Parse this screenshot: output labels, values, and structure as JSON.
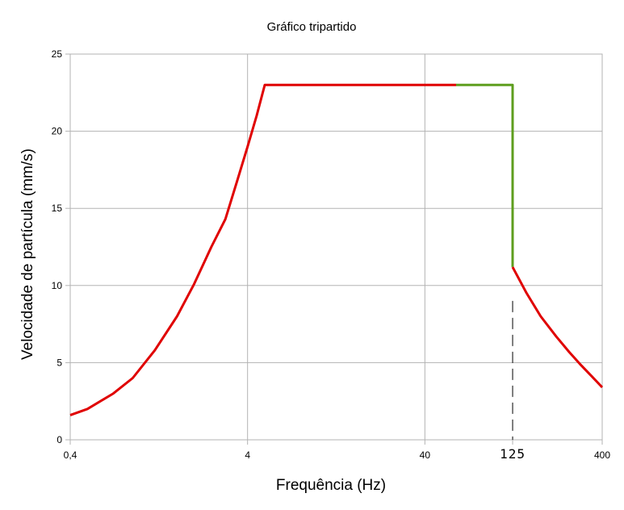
{
  "chart_data": {
    "type": "line",
    "title": "Gráfico tripartido",
    "xlabel": "Frequência (Hz)",
    "ylabel": "Velocidade de partícula (mm/s)",
    "xscale": "log",
    "xlim": [
      0.4,
      400
    ],
    "ylim": [
      0,
      25
    ],
    "grid": true,
    "legend": "none",
    "y_ticks": [
      "0",
      "5",
      "10",
      "15",
      "20",
      "25"
    ],
    "x_ticks": [
      {
        "value": 0.4,
        "label": "0,4"
      },
      {
        "value": 4,
        "label": "4"
      },
      {
        "value": 40,
        "label": "40"
      },
      {
        "value": 125,
        "label": "125"
      },
      {
        "value": 400,
        "label": "400"
      }
    ],
    "series": [
      {
        "color": "#e00000",
        "x": [
          0.4,
          0.5,
          0.7,
          0.9,
          1.2,
          1.6,
          2,
          2.5,
          3,
          3.5,
          4,
          4.5,
          5,
          5.5,
          6,
          6.3,
          7,
          10,
          20,
          40,
          60
        ],
        "y": [
          1.6,
          2.0,
          3.0,
          4.0,
          5.8,
          8.0,
          10.1,
          12.5,
          14.3,
          16.8,
          19.0,
          21.0,
          23.0,
          23.0,
          23.0,
          23.0,
          23.0,
          23.0,
          23.0,
          23.0,
          23.0
        ]
      },
      {
        "color": "#5e9e1e",
        "x": [
          60,
          125,
          125
        ],
        "y": [
          23.0,
          23.0,
          11.2
        ]
      },
      {
        "color": "#e00000",
        "x": [
          125,
          150,
          180,
          220,
          260,
          300,
          350,
          400
        ],
        "y": [
          11.2,
          9.5,
          8.0,
          6.7,
          5.7,
          4.9,
          4.1,
          3.4
        ]
      }
    ],
    "reference_lines": [
      {
        "axis": "x",
        "value": 125,
        "style": "dashed",
        "color": "#000000",
        "y_range": [
          0,
          9
        ]
      }
    ]
  }
}
